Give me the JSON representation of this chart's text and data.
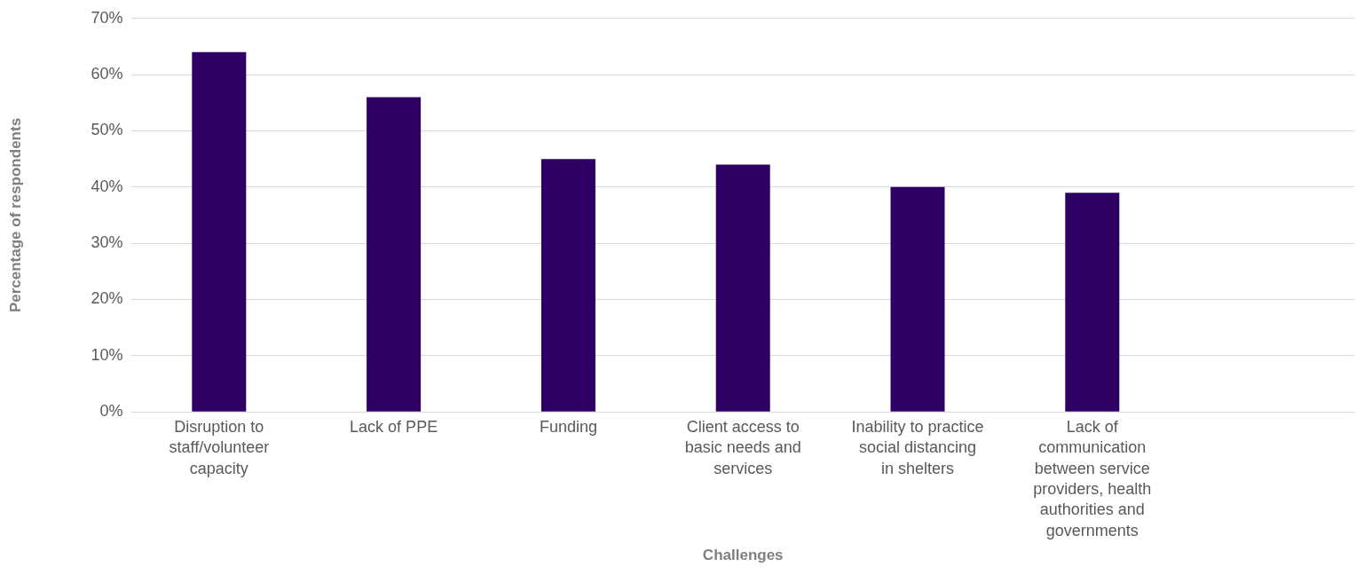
{
  "chart_data": {
    "type": "bar",
    "xlabel": "Challenges",
    "ylabel": "Percentage of respondents",
    "categories": [
      "Disruption to staff/volunteer capacity",
      "Lack of PPE",
      "Funding",
      "Client access to basic needs and services",
      "Inability to practice social distancing in shelters",
      "Lack of communication between service providers, health authorities and governments",
      null
    ],
    "values": [
      64,
      56,
      45,
      44,
      40,
      39,
      null
    ],
    "color": "#2e0063",
    "ylim": [
      0,
      70
    ],
    "yticks": [
      {
        "value": 0,
        "label": "0%"
      },
      {
        "value": 10,
        "label": "10%"
      },
      {
        "value": 20,
        "label": "20%"
      },
      {
        "value": 30,
        "label": "30%"
      },
      {
        "value": 40,
        "label": "40%"
      },
      {
        "value": 50,
        "label": "50%"
      },
      {
        "value": 60,
        "label": "60%"
      },
      {
        "value": 70,
        "label": "70%"
      }
    ],
    "grid": "y",
    "legend": false
  }
}
